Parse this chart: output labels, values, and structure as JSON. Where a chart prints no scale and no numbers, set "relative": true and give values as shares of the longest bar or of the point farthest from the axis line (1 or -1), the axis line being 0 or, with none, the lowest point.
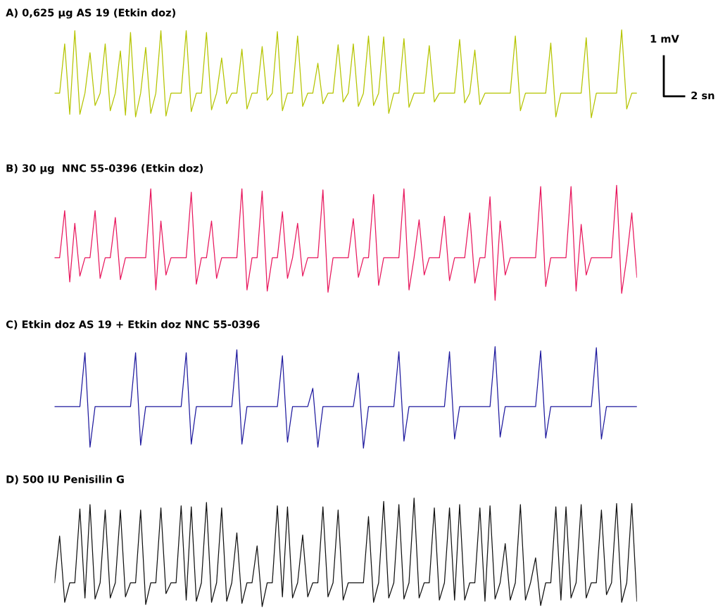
{
  "chart_data": [
    {
      "type": "line",
      "relative": true,
      "title": "A) 0,625 µg AS 19 (Etkin doz)",
      "annotations": [
        "1 mV",
        "2 sn"
      ],
      "categories": [
        null,
        null,
        null,
        null,
        null,
        null,
        null,
        null,
        null,
        null,
        null,
        null,
        null,
        null,
        null,
        null,
        null,
        null,
        null,
        null,
        null,
        null,
        null,
        null,
        null,
        null,
        null,
        null,
        null,
        null,
        null,
        null,
        null,
        null,
        null,
        null,
        null,
        null,
        null,
        null,
        null,
        null,
        null,
        null,
        null,
        null,
        null,
        null,
        null,
        null,
        null,
        null,
        null,
        null,
        null,
        null,
        null,
        null,
        null,
        null,
        null,
        null,
        null,
        null,
        null,
        null,
        null,
        null,
        null,
        null,
        null,
        null,
        null,
        null,
        null,
        null,
        null,
        null,
        null,
        null,
        null,
        null,
        null,
        null,
        null,
        null,
        null,
        null,
        null,
        null,
        null,
        null,
        null,
        null,
        null,
        null,
        null,
        null,
        null,
        null,
        null,
        null,
        null,
        null,
        null,
        null,
        null,
        null,
        null,
        null,
        null,
        null,
        null,
        null,
        null,
        null
      ],
      "series": [
        {
          "color": "#b5c400",
          "values": [
            0.28,
            0.28,
            0.84,
            0.04,
            0.99,
            0.04,
            0.28,
            0.74,
            0.14,
            0.28,
            0.84,
            0.08,
            0.28,
            0.76,
            0.03,
            0.97,
            0.01,
            0.28,
            0.8,
            0.05,
            0.28,
            0.99,
            0.02,
            0.28,
            0.28,
            0.28,
            0.99,
            0.07,
            0.28,
            0.28,
            0.97,
            0.09,
            0.28,
            0.68,
            0.16,
            0.28,
            0.28,
            0.78,
            0.1,
            0.28,
            0.28,
            0.81,
            0.2,
            0.28,
            0.98,
            0.08,
            0.28,
            0.28,
            0.93,
            0.13,
            0.28,
            0.28,
            0.62,
            0.16,
            0.28,
            0.28,
            0.83,
            0.18,
            0.28,
            0.84,
            0.13,
            0.28,
            0.93,
            0.14,
            0.28,
            0.92,
            0.05,
            0.28,
            0.28,
            0.9,
            0.12,
            0.28,
            0.28,
            0.28,
            0.82,
            0.18,
            0.28,
            0.28,
            0.28,
            0.28,
            0.89,
            0.17,
            0.28,
            0.77,
            0.15,
            0.28,
            0.28,
            0.28,
            0.28,
            0.28,
            0.28,
            0.93,
            0.08,
            0.28,
            0.28,
            0.28,
            0.28,
            0.28,
            0.85,
            0.01,
            0.28,
            0.28,
            0.28,
            0.28,
            0.28,
            0.91,
            0.0,
            0.28,
            0.28,
            0.28,
            0.28,
            0.28,
            1.0,
            0.1,
            0.28,
            0.28
          ]
        }
      ]
    },
    {
      "type": "line",
      "relative": true,
      "title": "B) 30 µg  NNC 55-0396 (Etkin doz)",
      "categories": [
        null,
        null,
        null,
        null,
        null,
        null,
        null,
        null,
        null,
        null,
        null,
        null,
        null,
        null,
        null,
        null,
        null,
        null,
        null,
        null,
        null,
        null,
        null,
        null,
        null,
        null,
        null,
        null,
        null,
        null,
        null,
        null,
        null,
        null,
        null,
        null,
        null,
        null,
        null,
        null,
        null,
        null,
        null,
        null,
        null,
        null,
        null,
        null,
        null,
        null,
        null,
        null,
        null,
        null,
        null,
        null,
        null,
        null,
        null,
        null,
        null,
        null,
        null,
        null,
        null,
        null,
        null,
        null,
        null,
        null,
        null,
        null,
        null,
        null,
        null,
        null,
        null,
        null,
        null,
        null,
        null,
        null,
        null,
        null,
        null,
        null,
        null,
        null,
        null,
        null,
        null,
        null,
        null,
        null,
        null,
        null,
        null,
        null,
        null,
        null,
        null,
        null,
        null,
        null,
        null,
        null,
        null,
        null,
        null,
        null,
        null,
        null,
        null,
        null,
        null,
        null
      ],
      "series": [
        {
          "color": "#e8175d",
          "values": [
            0.37,
            0.37,
            0.78,
            0.16,
            0.67,
            0.21,
            0.37,
            0.37,
            0.78,
            0.19,
            0.37,
            0.37,
            0.72,
            0.18,
            0.37,
            0.37,
            0.37,
            0.37,
            0.37,
            0.97,
            0.09,
            0.69,
            0.22,
            0.37,
            0.37,
            0.37,
            0.37,
            0.94,
            0.14,
            0.37,
            0.37,
            0.69,
            0.19,
            0.37,
            0.37,
            0.37,
            0.37,
            0.97,
            0.09,
            0.37,
            0.37,
            0.95,
            0.08,
            0.37,
            0.37,
            0.77,
            0.19,
            0.37,
            0.67,
            0.21,
            0.37,
            0.37,
            0.37,
            0.96,
            0.07,
            0.37,
            0.37,
            0.37,
            0.37,
            0.71,
            0.2,
            0.37,
            0.37,
            0.92,
            0.13,
            0.37,
            0.37,
            0.37,
            0.37,
            0.97,
            0.09,
            0.37,
            0.7,
            0.22,
            0.37,
            0.37,
            0.37,
            0.73,
            0.17,
            0.37,
            0.37,
            0.37,
            0.76,
            0.15,
            0.37,
            0.37,
            0.9,
            0.0,
            0.69,
            0.22,
            0.37,
            0.37,
            0.37,
            0.37,
            0.37,
            0.37,
            0.99,
            0.12,
            0.37,
            0.37,
            0.37,
            0.37,
            0.99,
            0.08,
            0.66,
            0.22,
            0.37,
            0.37,
            0.37,
            0.37,
            0.37,
            1.0,
            0.06,
            0.37,
            0.76,
            0.2
          ]
        }
      ]
    },
    {
      "type": "line",
      "relative": true,
      "title": "C) Etkin doz AS 19 + Etkin doz NNC 55-0396",
      "categories": [
        null,
        null,
        null,
        null,
        null,
        null,
        null,
        null,
        null,
        null,
        null,
        null,
        null,
        null,
        null,
        null,
        null,
        null,
        null,
        null,
        null,
        null,
        null,
        null,
        null,
        null,
        null,
        null,
        null,
        null,
        null,
        null,
        null,
        null,
        null,
        null,
        null,
        null,
        null,
        null,
        null,
        null,
        null,
        null,
        null,
        null,
        null,
        null,
        null,
        null,
        null,
        null,
        null,
        null,
        null,
        null,
        null,
        null,
        null,
        null,
        null,
        null,
        null,
        null,
        null,
        null,
        null,
        null,
        null,
        null,
        null,
        null,
        null,
        null,
        null,
        null,
        null,
        null,
        null,
        null,
        null,
        null,
        null,
        null,
        null,
        null,
        null,
        null,
        null,
        null,
        null,
        null,
        null,
        null,
        null,
        null,
        null,
        null,
        null,
        null,
        null,
        null,
        null,
        null,
        null,
        null,
        null,
        null,
        null,
        null,
        null,
        null,
        null,
        null,
        null,
        null
      ],
      "series": [
        {
          "color": "#1f1a9e",
          "values": [
            0.41,
            0.41,
            0.41,
            0.41,
            0.41,
            0.41,
            0.94,
            0.01,
            0.41,
            0.41,
            0.41,
            0.41,
            0.41,
            0.41,
            0.41,
            0.41,
            0.94,
            0.03,
            0.41,
            0.41,
            0.41,
            0.41,
            0.41,
            0.41,
            0.41,
            0.41,
            0.94,
            0.04,
            0.41,
            0.41,
            0.41,
            0.41,
            0.41,
            0.41,
            0.41,
            0.41,
            0.97,
            0.04,
            0.41,
            0.41,
            0.41,
            0.41,
            0.41,
            0.41,
            0.41,
            0.91,
            0.06,
            0.41,
            0.41,
            0.41,
            0.41,
            0.59,
            0.01,
            0.41,
            0.41,
            0.41,
            0.41,
            0.41,
            0.41,
            0.41,
            0.74,
            0.0,
            0.41,
            0.41,
            0.41,
            0.41,
            0.41,
            0.41,
            0.95,
            0.07,
            0.41,
            0.41,
            0.41,
            0.41,
            0.41,
            0.41,
            0.41,
            0.41,
            0.95,
            0.09,
            0.41,
            0.41,
            0.41,
            0.41,
            0.41,
            0.41,
            0.41,
            1.0,
            0.11,
            0.41,
            0.41,
            0.41,
            0.41,
            0.41,
            0.41,
            0.41,
            0.96,
            0.1,
            0.41,
            0.41,
            0.41,
            0.41,
            0.41,
            0.41,
            0.41,
            0.41,
            0.41,
            0.99,
            0.09,
            0.41,
            0.41,
            0.41,
            0.41,
            0.41,
            0.41,
            0.41
          ]
        }
      ]
    },
    {
      "type": "line",
      "relative": true,
      "title": "D) 500 IU Penisilin G",
      "categories": [
        null,
        null,
        null,
        null,
        null,
        null,
        null,
        null,
        null,
        null,
        null,
        null,
        null,
        null,
        null,
        null,
        null,
        null,
        null,
        null,
        null,
        null,
        null,
        null,
        null,
        null,
        null,
        null,
        null,
        null,
        null,
        null,
        null,
        null,
        null,
        null,
        null,
        null,
        null,
        null,
        null,
        null,
        null,
        null,
        null,
        null,
        null,
        null,
        null,
        null,
        null,
        null,
        null,
        null,
        null,
        null,
        null,
        null,
        null,
        null,
        null,
        null,
        null,
        null,
        null,
        null,
        null,
        null,
        null,
        null,
        null,
        null,
        null,
        null,
        null,
        null,
        null,
        null,
        null,
        null,
        null,
        null,
        null,
        null,
        null,
        null,
        null,
        null,
        null,
        null,
        null,
        null,
        null,
        null,
        null,
        null,
        null,
        null,
        null,
        null,
        null,
        null,
        null,
        null,
        null,
        null,
        null,
        null,
        null,
        null,
        null,
        null,
        null,
        null,
        null,
        null
      ],
      "series": [
        {
          "color": "#111111",
          "values": [
            0.22,
            0.65,
            0.04,
            0.22,
            0.22,
            0.9,
            0.08,
            0.94,
            0.07,
            0.22,
            0.89,
            0.08,
            0.22,
            0.89,
            0.09,
            0.22,
            0.22,
            0.89,
            0.02,
            0.22,
            0.22,
            0.91,
            0.12,
            0.22,
            0.22,
            0.93,
            0.06,
            0.92,
            0.05,
            0.22,
            0.96,
            0.04,
            0.22,
            0.91,
            0.05,
            0.22,
            0.68,
            0.03,
            0.22,
            0.22,
            0.56,
            0.0,
            0.22,
            0.22,
            0.93,
            0.09,
            0.92,
            0.08,
            0.22,
            0.66,
            0.09,
            0.22,
            0.22,
            0.92,
            0.09,
            0.22,
            0.89,
            0.06,
            0.22,
            0.22,
            0.22,
            0.22,
            0.83,
            0.04,
            0.22,
            0.97,
            0.08,
            0.22,
            0.94,
            0.07,
            0.22,
            1.0,
            0.08,
            0.22,
            0.22,
            0.91,
            0.06,
            0.22,
            0.91,
            0.06,
            0.94,
            0.06,
            0.22,
            0.22,
            0.91,
            0.05,
            0.93,
            0.07,
            0.22,
            0.58,
            0.06,
            0.22,
            0.94,
            0.06,
            0.22,
            0.45,
            0.01,
            0.22,
            0.22,
            0.92,
            0.06,
            0.92,
            0.08,
            0.22,
            0.94,
            0.08,
            0.22,
            0.22,
            0.89,
            0.11,
            0.22,
            0.95,
            0.04,
            0.22,
            0.95,
            0.05
          ]
        }
      ]
    }
  ]
}
